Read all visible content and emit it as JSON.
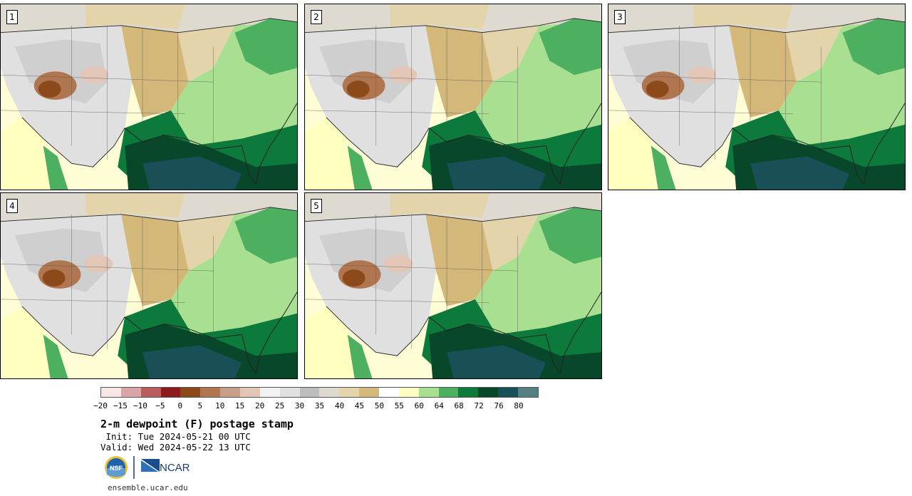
{
  "panels": [
    {
      "label": "1"
    },
    {
      "label": "2"
    },
    {
      "label": "3"
    },
    {
      "label": "4"
    },
    {
      "label": "5"
    }
  ],
  "colorbar": {
    "colors": [
      "#f6e7e6",
      "#d9a5a6",
      "#b85c5c",
      "#8e1b1b",
      "#8c4a1a",
      "#b07650",
      "#c8a088",
      "#e3c6b6",
      "#f2f2f2",
      "#e0e0e0",
      "#bdbdbd",
      "#dedad0",
      "#e3d4ac",
      "#d4b87a",
      "#ffffff",
      "#ffffc0",
      "#a8df90",
      "#4db060",
      "#0b7a3a",
      "#08472a",
      "#194f57",
      "#557f80"
    ],
    "ticks": [
      "−20",
      "−15",
      "−10",
      "−5",
      "0",
      "5",
      "10",
      "15",
      "20",
      "25",
      "30",
      "35",
      "40",
      "45",
      "50",
      "55",
      "60",
      "64",
      "68",
      "72",
      "76",
      "80"
    ]
  },
  "title": "2-m dewpoint (F) postage stamp",
  "init": " Init: Tue 2024-05-21 00 UTC",
  "valid": "Valid: Wed 2024-05-22 13 UTC",
  "logos": {
    "left": "NSF",
    "right": "NCAR"
  },
  "footer": "ensemble.ucar.edu"
}
